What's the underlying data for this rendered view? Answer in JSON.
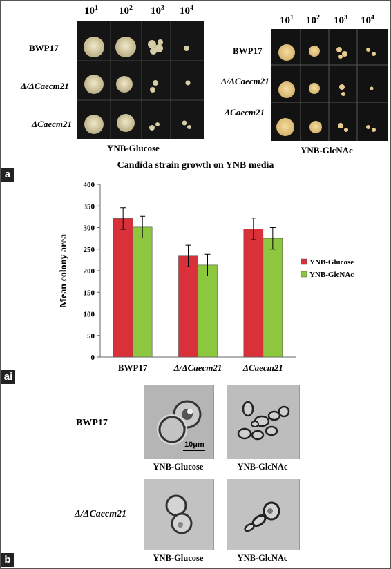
{
  "panel_labels": [
    "a",
    "ai",
    "b"
  ],
  "plates": {
    "dilutions": [
      "10",
      "1",
      "10",
      "2",
      "10",
      "3",
      "10",
      "4"
    ],
    "left": {
      "strains": [
        "BWP17",
        "Δ/ΔCaecm21",
        "ΔCaecm21"
      ],
      "medium": "YNB-Glucose"
    },
    "right": {
      "strains": [
        "BWP17",
        "Δ/ΔCaecm21",
        "ΔCaecm21"
      ],
      "medium": "YNB-GlcNAc"
    }
  },
  "chart_data": {
    "type": "bar",
    "title": "Candida strain growth on YNB media",
    "ylabel": "Mean colony area",
    "xlabel": "",
    "categories": [
      "BWP17",
      "Δ/ΔCaecm21",
      "ΔCaecm21"
    ],
    "ylim": [
      0,
      400
    ],
    "yticks": [
      "0",
      "50",
      "100",
      "150",
      "200",
      "250",
      "300",
      "350",
      "400"
    ],
    "legend_position": "right",
    "grid": false,
    "series": [
      {
        "name": "YNB-Glucose",
        "color": "#d9303a",
        "values": [
          321,
          234,
          297
        ],
        "errors": [
          25,
          25,
          25
        ]
      },
      {
        "name": "YNB-GlcNAc",
        "color": "#8dc63f",
        "values": [
          301,
          213,
          275
        ],
        "errors": [
          25,
          25,
          25
        ]
      }
    ]
  },
  "microscopy": {
    "rows": [
      "BWP17",
      "Δ/ΔCaecm21"
    ],
    "columns": [
      "YNB-Glucose",
      "YNB-GlcNAc"
    ],
    "scale_bar": "10μm"
  }
}
